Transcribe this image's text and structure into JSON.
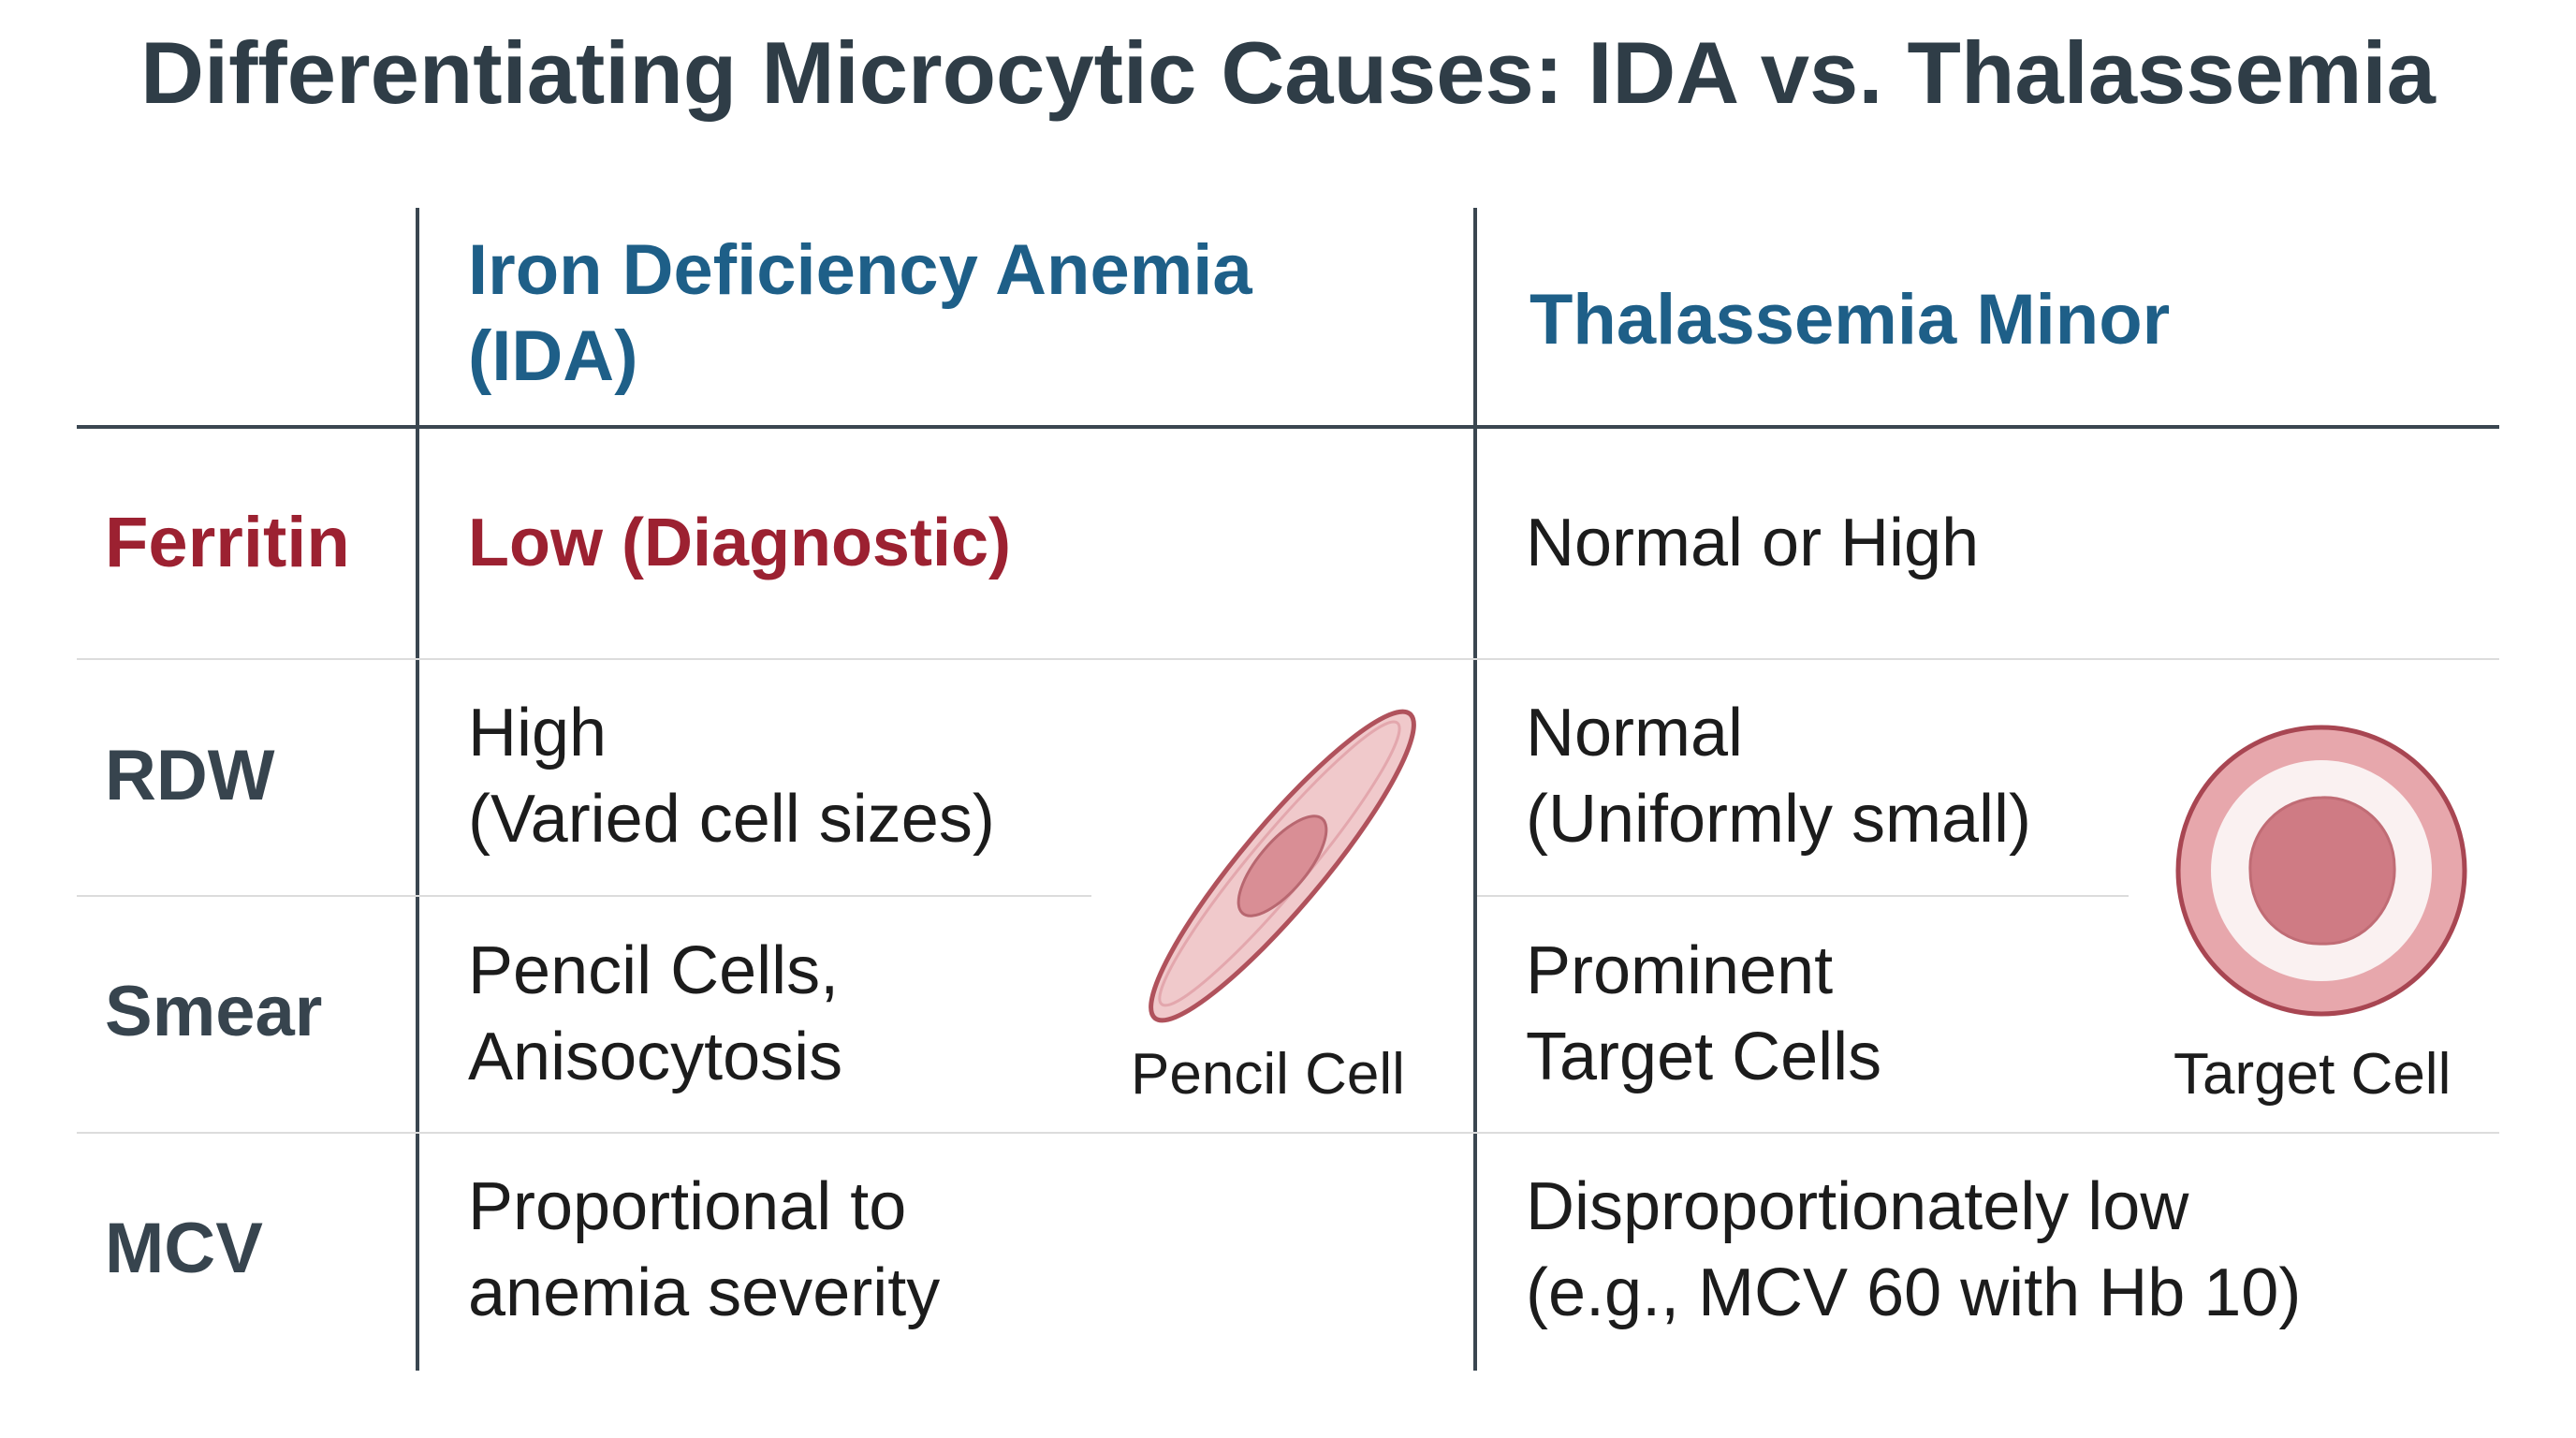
{
  "title": "Differentiating Microcytic Causes: IDA vs. Thalassemia",
  "columns": {
    "ida": {
      "line1": "Iron Deficiency Anemia",
      "line2": "(IDA)"
    },
    "thal": {
      "line1": "Thalassemia Minor"
    }
  },
  "rows": {
    "ferritin": {
      "label": "Ferritin",
      "ida": [
        "Low (Diagnostic)"
      ],
      "thal": [
        "Normal or High"
      ]
    },
    "rdw": {
      "label": "RDW",
      "ida": [
        "High",
        "(Varied cell sizes)"
      ],
      "thal": [
        "Normal",
        "(Uniformly small)"
      ]
    },
    "smear": {
      "label": "Smear",
      "ida": [
        "Pencil Cells,",
        "Anisocytosis"
      ],
      "thal": [
        "Prominent",
        "Target Cells"
      ]
    },
    "mcv": {
      "label": "MCV",
      "ida": [
        "Proportional to",
        "anemia severity"
      ],
      "thal": [
        "Disproportionately low",
        "(e.g., MCV 60 with Hb 10)"
      ]
    }
  },
  "illustrations": {
    "pencil_cell": {
      "caption": "Pencil Cell",
      "icon": "pencil-cell-icon"
    },
    "target_cell": {
      "caption": "Target Cell",
      "icon": "target-cell-icon"
    }
  },
  "colors": {
    "title": "#2f3d47",
    "column_header": "#1e5f88",
    "ferritin_highlight": "#9c2131",
    "row_label": "#37444e",
    "grid_line": "#3a4650",
    "cell_fill": "#e8b3b6",
    "cell_outline": "#b0525c"
  }
}
